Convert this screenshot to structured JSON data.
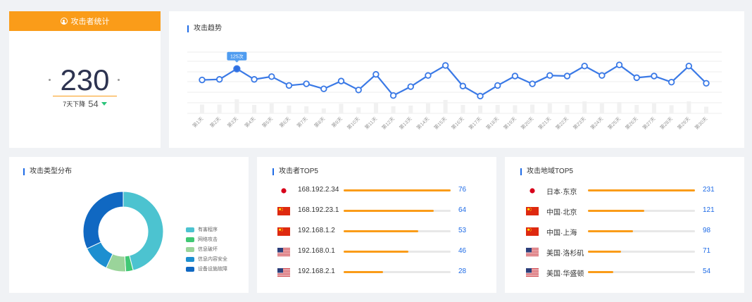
{
  "colors": {
    "accent": "#1e6be6",
    "orange": "#fa9c19",
    "teal": "#4cc3d0",
    "down": "#2bc47a"
  },
  "stats": {
    "title": "攻击者统计",
    "icon": "user-circle-icon",
    "total": "230",
    "change_label": "7天下降",
    "change_value": "54",
    "change_icon": "triangle-down-icon"
  },
  "trend": {
    "title": "攻击趋势",
    "tooltip": "125次",
    "chart_data": {
      "type": "line",
      "categories": [
        "第1天",
        "第2天",
        "第3天",
        "第4天",
        "第5天",
        "第6天",
        "第7天",
        "第8天",
        "第9天",
        "第10天",
        "第11天",
        "第12天",
        "第13天",
        "第14天",
        "第15天",
        "第16天",
        "第17天",
        "第18天",
        "第19天",
        "第20天",
        "第21天",
        "第22天",
        "第23天",
        "第24天",
        "第25天",
        "第26天",
        "第27天",
        "第28天",
        "第29天",
        "第30天"
      ],
      "values": [
        105,
        106,
        125,
        106,
        111,
        95,
        98,
        89,
        103,
        87,
        115,
        77,
        93,
        113,
        131,
        94,
        76,
        95,
        112,
        98,
        113,
        112,
        130,
        113,
        132,
        109,
        112,
        101,
        130,
        99
      ],
      "bars": [
        25,
        25,
        40,
        24,
        28,
        22,
        20,
        14,
        27,
        17,
        30,
        20,
        22,
        28,
        38,
        24,
        22,
        24,
        23,
        25,
        28,
        24,
        34,
        28,
        32,
        24,
        28,
        23,
        34,
        19
      ],
      "ylim": [
        45,
        155
      ],
      "highlight_index": 2
    }
  },
  "attack_types": {
    "title": "攻击类型分布",
    "chart_data": {
      "type": "pie",
      "labels": [
        "有害程序",
        "网络攻击",
        "信息破坏",
        "信息内容安全",
        "设备设施故障"
      ],
      "values": [
        46,
        3,
        8,
        11,
        32
      ],
      "colors": [
        "#4cc3d0",
        "#40c875",
        "#9ad49a",
        "#1d8fd0",
        "#1068c2"
      ]
    }
  },
  "top_attackers": {
    "title": "攻击者TOP5",
    "max": 76,
    "items": [
      {
        "label": "168.192.2.34",
        "value": 76,
        "flag": "japan-flag-icon"
      },
      {
        "label": "168.192.23.1",
        "value": 64,
        "flag": "china-flag-icon"
      },
      {
        "label": "192.168.1.2",
        "value": 53,
        "flag": "china-flag-icon"
      },
      {
        "label": "192.168.0.1",
        "value": 46,
        "flag": "usa-flag-icon"
      },
      {
        "label": "192.168.2.1",
        "value": 28,
        "flag": "usa-flag-icon"
      }
    ]
  },
  "top_regions": {
    "title": "攻击地域TOP5",
    "max": 231,
    "items": [
      {
        "label": "日本·东京",
        "value": 231,
        "flag": "japan-flag-icon"
      },
      {
        "label": "中国·北京",
        "value": 121,
        "flag": "china-flag-icon"
      },
      {
        "label": "中国·上海",
        "value": 98,
        "flag": "china-flag-icon"
      },
      {
        "label": "美国·洛杉矶",
        "value": 71,
        "flag": "usa-flag-icon"
      },
      {
        "label": "美国·华盛顿",
        "value": 54,
        "flag": "usa-flag-icon"
      }
    ]
  }
}
